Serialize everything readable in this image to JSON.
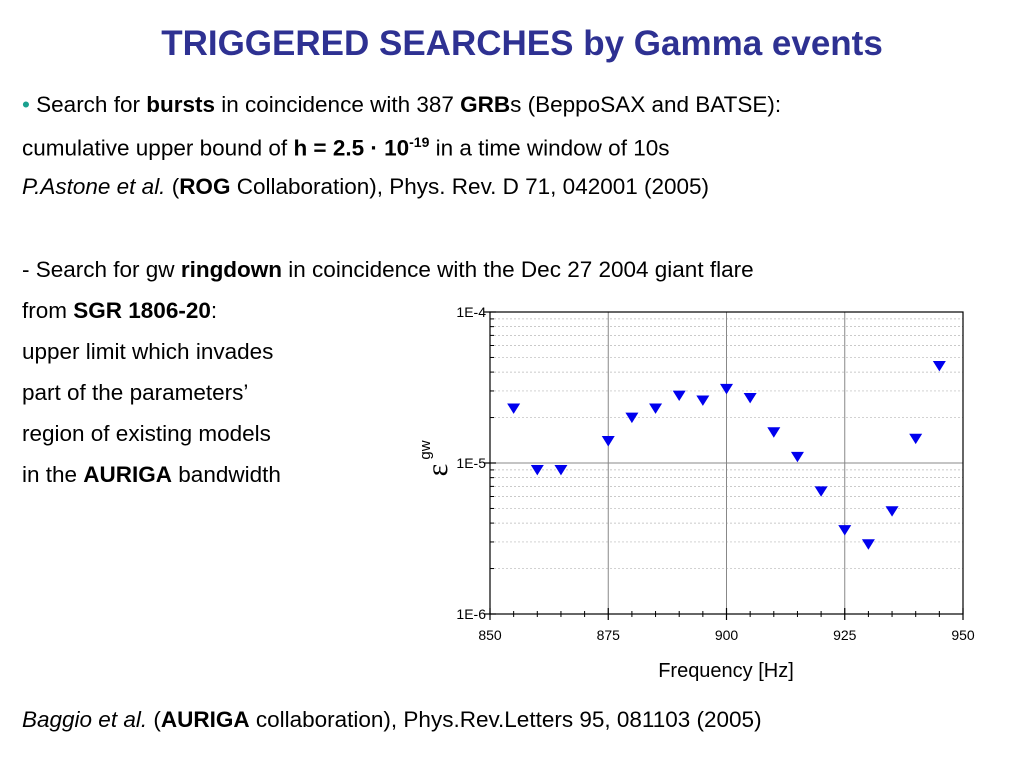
{
  "title": "TRIGGERED SEARCHES by Gamma events",
  "colors": {
    "title": "#2e3192",
    "bullet": "#1aa18f",
    "marker": "#0000ee"
  },
  "block1": {
    "bullet": "•",
    "l1_a": "Search for ",
    "l1_b": "bursts",
    "l1_c": " in coincidence with 387 ",
    "l1_d": "GRB",
    "l1_e": "s (BeppoSAX and BATSE):",
    "l2_a": "cumulative upper bound of  ",
    "l2_b": "h = 2.5 · 10",
    "l2_sup": "-19",
    "l2_c": " in a time window of 10s",
    "l3_a": "P.Astone et al.",
    "l3_b": " (",
    "l3_c": "ROG",
    "l3_d": " Collaboration), Phys. Rev. D 71, 042001 (2005)"
  },
  "block2": {
    "l1_a": "- Search for gw ",
    "l1_b": "ringdown",
    "l1_c": " in coincidence with the Dec 27 2004  giant flare",
    "l2_a": "from ",
    "l2_b": "SGR 1806-20",
    "l2_c": ":",
    "l3": "upper limit which invades",
    "l4": "part of the parameters’",
    "l5": "region of existing models",
    "l6_a": "in the ",
    "l6_b": "AURIGA",
    "l6_c": " bandwidth"
  },
  "citation": {
    "a": "Baggio et al.",
    "b": " (",
    "c": "AURIGA",
    "d": " collaboration), Phys.Rev.Letters 95, 081103 (2005)"
  },
  "chart_data": {
    "type": "scatter",
    "marker": "down-triangle",
    "xlabel": "Frequency  [Hz]",
    "ylabel_symbol": "ε",
    "ylabel_sub": "gw",
    "xlim": [
      850,
      950
    ],
    "ylim": [
      1e-06,
      0.0001
    ],
    "yscale": "log",
    "grid": true,
    "xticks": [
      850,
      875,
      900,
      925,
      950
    ],
    "xtick_labels": [
      "850",
      "875",
      "900",
      "925",
      "950"
    ],
    "yticks": [
      0.0001,
      1e-05,
      1e-06
    ],
    "ytick_labels": [
      "1E-4",
      "1E-5",
      "1E-6"
    ],
    "x": [
      855,
      860,
      865,
      875,
      880,
      885,
      890,
      895,
      900,
      905,
      910,
      915,
      920,
      925,
      930,
      935,
      940,
      945
    ],
    "y": [
      2.3e-05,
      9e-06,
      9e-06,
      1.4e-05,
      2e-05,
      2.3e-05,
      2.8e-05,
      2.6e-05,
      3.1e-05,
      2.7e-05,
      1.6e-05,
      1.1e-05,
      6.5e-06,
      3.6e-06,
      2.9e-06,
      4.8e-06,
      1.45e-05,
      4.4e-05
    ]
  }
}
